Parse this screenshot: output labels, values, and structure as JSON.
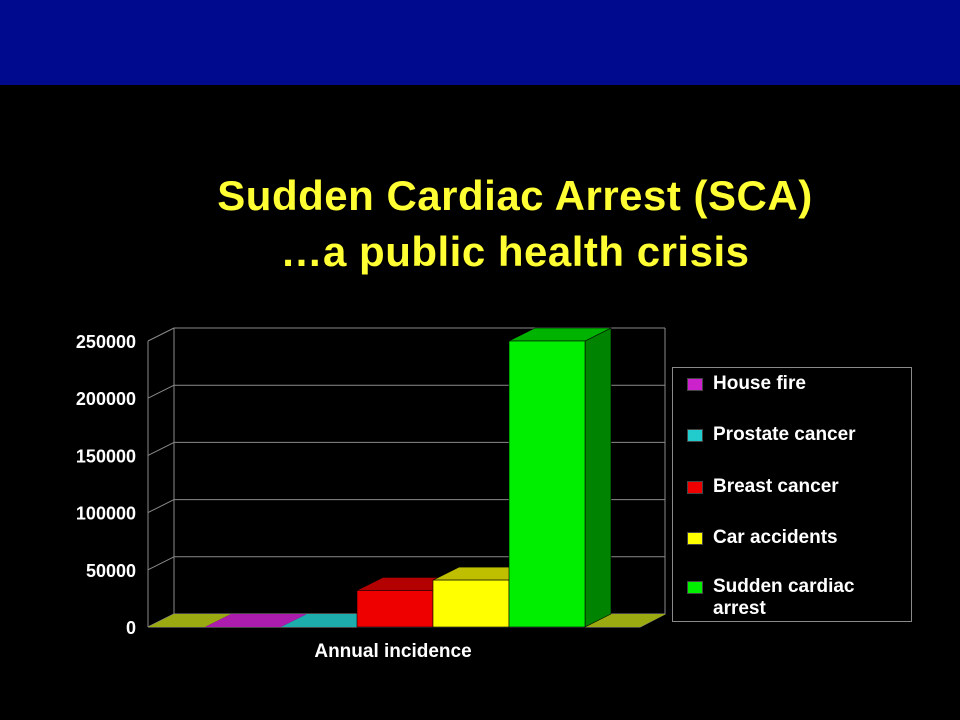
{
  "slide": {
    "title_line1": "Sudden Cardiac Arrest (SCA)",
    "title_line2": "…a public health crisis"
  },
  "chart_data": {
    "type": "bar",
    "categories": [
      "Annual incidence"
    ],
    "xlabel": "Annual incidence",
    "ylabel": "",
    "ylim": [
      0,
      250000
    ],
    "yticks": [
      "0",
      "50000",
      "100000",
      "150000",
      "200000",
      "250000"
    ],
    "grid": true,
    "three_d": true,
    "legend_position": "right",
    "series": [
      {
        "name": "House fire",
        "values": [
          0
        ],
        "color": "#cc22cc"
      },
      {
        "name": "Prostate cancer",
        "values": [
          0
        ],
        "color": "#22cccc"
      },
      {
        "name": "Breast cancer",
        "values": [
          32000
        ],
        "color": "#ee0000"
      },
      {
        "name": "Car accidents",
        "values": [
          41000
        ],
        "color": "#ffff00"
      },
      {
        "name": "Sudden cardiac arrest",
        "values": [
          250000
        ],
        "color": "#00ee00"
      }
    ]
  },
  "legend": {
    "items": [
      {
        "label": "House fire",
        "color": "#cc22cc"
      },
      {
        "label": "Prostate cancer",
        "color": "#22cccc"
      },
      {
        "label": "Breast cancer",
        "color": "#ee0000"
      },
      {
        "label": "Car accidents",
        "color": "#ffff00"
      },
      {
        "label": "Sudden cardiac\narrest",
        "color": "#00ee00"
      }
    ]
  }
}
